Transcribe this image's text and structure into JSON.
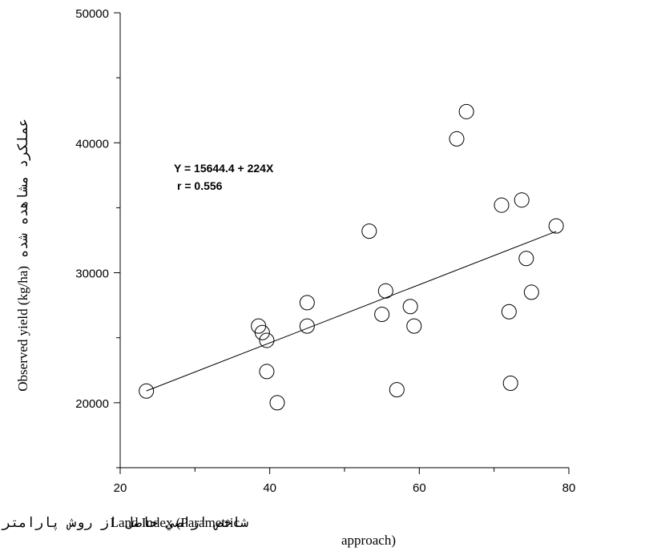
{
  "chart_data": {
    "type": "scatter",
    "title": "",
    "xlabel_en": "Land Index (Parametric",
    "xlabel_fa": "شاخص اراضي حاصل از روش پارامتريك",
    "xlabel_en_cont": "approach)",
    "ylabel_en": "Observed yield (kg/ha)",
    "ylabel_fa": "عملكرد مشاهده شده",
    "xlim": [
      20,
      80
    ],
    "ylim": [
      15000,
      50000
    ],
    "x_ticks": [
      "20",
      "40",
      "60",
      "80"
    ],
    "y_ticks": [
      "20000",
      "30000",
      "40000",
      "50000"
    ],
    "equation": "Y = 15644.4 + 224X",
    "r_value": "r = 0.556",
    "regression": {
      "intercept": 15644.4,
      "slope": 224,
      "x_range": [
        23.5,
        78.3
      ]
    },
    "marker": "open-circle",
    "points": [
      {
        "x": 23.5,
        "y": 20900
      },
      {
        "x": 38.5,
        "y": 25900
      },
      {
        "x": 39.0,
        "y": 25400
      },
      {
        "x": 39.6,
        "y": 24800
      },
      {
        "x": 39.6,
        "y": 22400
      },
      {
        "x": 41.0,
        "y": 20000
      },
      {
        "x": 45.0,
        "y": 27700
      },
      {
        "x": 45.0,
        "y": 25900
      },
      {
        "x": 53.3,
        "y": 33200
      },
      {
        "x": 55.0,
        "y": 26800
      },
      {
        "x": 55.5,
        "y": 28600
      },
      {
        "x": 57.0,
        "y": 21000
      },
      {
        "x": 58.8,
        "y": 27400
      },
      {
        "x": 59.3,
        "y": 25900
      },
      {
        "x": 65.0,
        "y": 40300
      },
      {
        "x": 66.3,
        "y": 42400
      },
      {
        "x": 71.0,
        "y": 35200
      },
      {
        "x": 72.0,
        "y": 27000
      },
      {
        "x": 72.2,
        "y": 21500
      },
      {
        "x": 73.7,
        "y": 35600
      },
      {
        "x": 74.3,
        "y": 31100
      },
      {
        "x": 75.0,
        "y": 28500
      },
      {
        "x": 78.3,
        "y": 33600
      }
    ]
  }
}
